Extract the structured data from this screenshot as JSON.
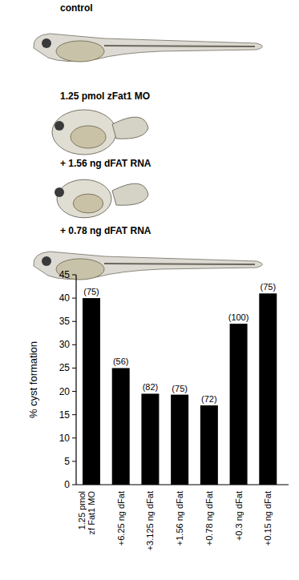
{
  "images": {
    "labels": [
      "control",
      "1.25 pmol zFat1 MO",
      "+ 1.56 ng dFAT RNA",
      "+ 0.78 ng dFAT RNA"
    ]
  },
  "chart_data": {
    "type": "bar",
    "y_label": "% cyst formation",
    "categories": [
      "1.25 pmol\nzf Fat1 MO",
      "+6.25 ng dFat",
      "+3.125 ng dFat",
      "+1.56 ng dFat",
      "+0.78 ng dFat",
      "+0.3 ng dFat",
      "+0.15 ng dFat"
    ],
    "values": [
      40,
      25,
      19.5,
      19.3,
      17,
      34.5,
      41
    ],
    "annotations": [
      "(75)",
      "(56)",
      "(82)",
      "(75)",
      "(72)",
      "(100)",
      "(75)"
    ],
    "color": "#000000",
    "ylim": [
      0,
      45
    ],
    "yticks": [
      0,
      5,
      10,
      15,
      20,
      25,
      30,
      35,
      40,
      45
    ],
    "grid": false
  }
}
